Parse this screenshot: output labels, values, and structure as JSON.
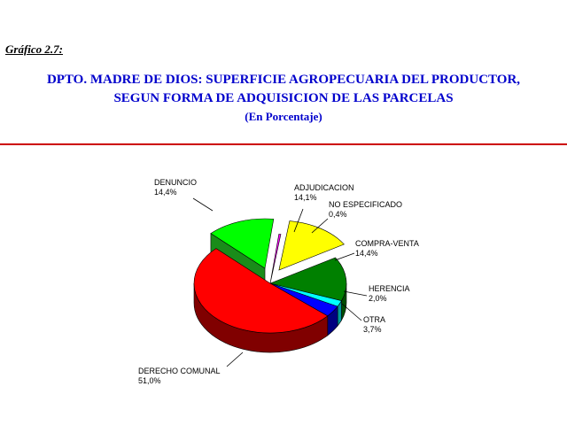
{
  "figure_label": "Gráfico 2.7:",
  "title_line1": "DPTO. MADRE DE DIOS: SUPERFICIE AGROPECUARIA DEL PRODUCTOR,",
  "title_line2": "SEGUN FORMA DE ADQUISICION DE LAS PARCELAS",
  "subtitle": "(En Porcentaje)",
  "chart_data": {
    "type": "pie",
    "title": "DPTO. MADRE DE DIOS: SUPERFICIE AGROPECUARIA DEL PRODUCTOR, SEGUN FORMA DE ADQUISICION DE LAS PARCELAS",
    "subtitle": "(En Porcentaje)",
    "three_d": true,
    "exploded": [
      "DENUNCIO",
      "ADJUDICACION"
    ],
    "slices": [
      {
        "label": "ADJUDICACION",
        "value": 14.1,
        "value_text": "14,1%",
        "color": "#ffff00",
        "side_color": "#999900"
      },
      {
        "label": "COMPRA-VENTA",
        "value": 14.4,
        "value_text": "14,4%",
        "color": "#008000",
        "side_color": "#004d00"
      },
      {
        "label": "HERENCIA",
        "value": 2.0,
        "value_text": "2,0%",
        "color": "#00ffff",
        "side_color": "#009999"
      },
      {
        "label": "OTRA",
        "value": 3.7,
        "value_text": "3,7%",
        "color": "#0000ff",
        "side_color": "#000080"
      },
      {
        "label": "DERECHO COMUNAL",
        "value": 51.0,
        "value_text": "51,0%",
        "color": "#ff0000",
        "side_color": "#800000"
      },
      {
        "label": "DENUNCIO",
        "value": 14.4,
        "value_text": "14,4%",
        "color": "#00ff00",
        "side_color": "#1a8c1a"
      },
      {
        "label": "NO ESPECIFICADO",
        "value": 0.4,
        "value_text": "0,4%",
        "color": "#ff00ff",
        "side_color": "#800080"
      }
    ]
  }
}
